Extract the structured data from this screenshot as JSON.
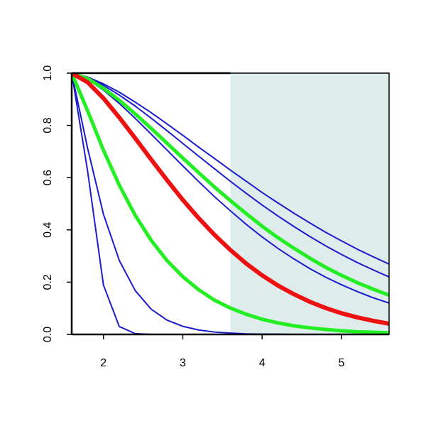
{
  "chart_data": {
    "type": "line",
    "x": [
      1.6,
      1.8,
      2.0,
      2.2,
      2.4,
      2.6,
      2.8,
      3.0,
      3.2,
      3.4,
      3.6,
      3.8,
      4.0,
      4.2,
      4.4,
      4.6,
      4.8,
      5.0,
      5.2,
      5.4,
      5.6
    ],
    "series": [
      {
        "color": "#1c1ccc",
        "line_width": 2,
        "values": [
          1,
          0.985,
          0.959,
          0.927,
          0.889,
          0.849,
          0.806,
          0.762,
          0.717,
          0.673,
          0.629,
          0.586,
          0.543,
          0.503,
          0.464,
          0.427,
          0.391,
          0.358,
          0.326,
          0.297,
          0.269
        ]
      },
      {
        "color": "#1c1ccc",
        "line_width": 2,
        "values": [
          1,
          0.983,
          0.953,
          0.916,
          0.874,
          0.828,
          0.78,
          0.731,
          0.682,
          0.634,
          0.586,
          0.54,
          0.495,
          0.453,
          0.413,
          0.375,
          0.339,
          0.306,
          0.275,
          0.247,
          0.22
        ]
      },
      {
        "color": "#1c1ccc",
        "line_width": 2,
        "values": [
          1,
          0.977,
          0.935,
          0.884,
          0.827,
          0.767,
          0.706,
          0.645,
          0.585,
          0.527,
          0.473,
          0.421,
          0.373,
          0.329,
          0.289,
          0.252,
          0.219,
          0.19,
          0.164,
          0.14,
          0.12
        ]
      },
      {
        "color": "#1c1ccc",
        "line_width": 2,
        "values": [
          1,
          0.713,
          0.46,
          0.283,
          0.168,
          0.097,
          0.055,
          0.031,
          0.017,
          0.009,
          0.005,
          0.002,
          0.001,
          0.001,
          0,
          0,
          0,
          0,
          0,
          0,
          0
        ]
      },
      {
        "color": "#1c1ccc",
        "line_width": 2,
        "values": [
          1,
          0.626,
          0.189,
          0.03,
          0.003,
          0,
          0,
          0,
          0,
          0,
          0,
          0,
          0,
          0,
          0,
          0,
          0,
          0,
          0,
          0,
          0
        ]
      },
      {
        "color": "#22ee22",
        "line_width": 5,
        "values": [
          1,
          0.979,
          0.942,
          0.896,
          0.844,
          0.789,
          0.732,
          0.675,
          0.619,
          0.564,
          0.512,
          0.462,
          0.414,
          0.37,
          0.33,
          0.292,
          0.257,
          0.226,
          0.198,
          0.173,
          0.15
        ]
      },
      {
        "color": "#22ee22",
        "line_width": 5,
        "values": [
          1,
          0.856,
          0.705,
          0.571,
          0.456,
          0.361,
          0.283,
          0.221,
          0.171,
          0.131,
          0.101,
          0.077,
          0.058,
          0.044,
          0.033,
          0.025,
          0.019,
          0.014,
          0.01,
          0.008,
          0.006
        ]
      },
      {
        "color": "#ee1111",
        "line_width": 6,
        "values": [
          1,
          0.965,
          0.904,
          0.83,
          0.751,
          0.67,
          0.591,
          0.515,
          0.445,
          0.381,
          0.323,
          0.271,
          0.226,
          0.187,
          0.154,
          0.125,
          0.101,
          0.081,
          0.065,
          0.052,
          0.041
        ]
      }
    ],
    "xlim": [
      1.6,
      5.6
    ],
    "ylim": [
      0,
      1
    ],
    "xticks": [
      2,
      3,
      4,
      5
    ],
    "yticks": [
      {
        "value": 0,
        "label": "0.0"
      },
      {
        "value": 0.2,
        "label": "0.2"
      },
      {
        "value": 0.4,
        "label": "0.4"
      },
      {
        "value": 0.6,
        "label": "0.6"
      },
      {
        "value": 0.8,
        "label": "0.8"
      },
      {
        "value": 1,
        "label": "1.0"
      }
    ],
    "highlight": {
      "xlim": [
        3.6,
        5.6
      ],
      "color": "#deecec"
    }
  }
}
